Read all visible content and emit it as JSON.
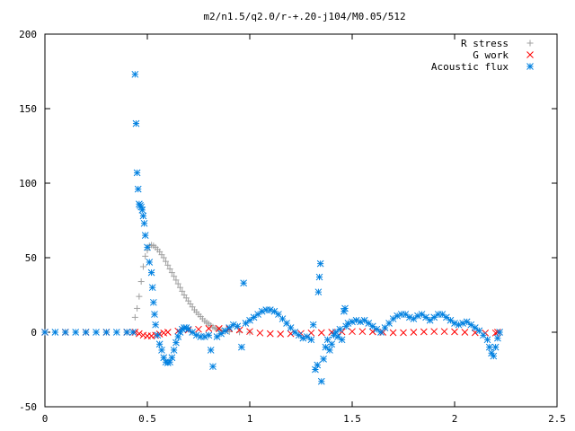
{
  "chart_data": {
    "type": "scatter",
    "title": "m2/n1.5/q2.0/r-+.20-j104/M0.05/512",
    "xlabel": "",
    "ylabel": "",
    "xlim": [
      0,
      2.5
    ],
    "ylim": [
      -50,
      200
    ],
    "x_ticks": [
      0,
      0.5,
      1,
      1.5,
      2,
      2.5
    ],
    "x_tick_labels": [
      "0",
      "0.5",
      "1",
      "1.5",
      "2",
      "2.5"
    ],
    "y_ticks": [
      -50,
      0,
      50,
      100,
      150,
      200
    ],
    "y_tick_labels": [
      "-50",
      "0",
      "50",
      "100",
      "150",
      "200"
    ],
    "grid": false,
    "legend_position": "top-right",
    "series": [
      {
        "name": "R stress",
        "marker": "plus",
        "color": "#a0a0a0",
        "points": [
          [
            0.0,
            0
          ],
          [
            0.1,
            0
          ],
          [
            0.2,
            0
          ],
          [
            0.3,
            0
          ],
          [
            0.4,
            0
          ],
          [
            0.44,
            10
          ],
          [
            0.45,
            16
          ],
          [
            0.46,
            24
          ],
          [
            0.47,
            34
          ],
          [
            0.48,
            44
          ],
          [
            0.49,
            51
          ],
          [
            0.5,
            55
          ],
          [
            0.51,
            58
          ],
          [
            0.52,
            58.5
          ],
          [
            0.53,
            58
          ],
          [
            0.54,
            57
          ],
          [
            0.55,
            55.5
          ],
          [
            0.56,
            54
          ],
          [
            0.57,
            52
          ],
          [
            0.58,
            50
          ],
          [
            0.59,
            47.5
          ],
          [
            0.6,
            45
          ],
          [
            0.61,
            42.5
          ],
          [
            0.62,
            40
          ],
          [
            0.63,
            37.5
          ],
          [
            0.64,
            35
          ],
          [
            0.65,
            32.5
          ],
          [
            0.66,
            30
          ],
          [
            0.67,
            27.5
          ],
          [
            0.68,
            25
          ],
          [
            0.69,
            23
          ],
          [
            0.7,
            21
          ],
          [
            0.71,
            19
          ],
          [
            0.72,
            17
          ],
          [
            0.73,
            15
          ],
          [
            0.74,
            13.5
          ],
          [
            0.75,
            12
          ],
          [
            0.76,
            10.5
          ],
          [
            0.77,
            9
          ],
          [
            0.78,
            7.5
          ],
          [
            0.79,
            6.5
          ],
          [
            0.8,
            5.5
          ],
          [
            0.81,
            4.5
          ],
          [
            0.82,
            3.5
          ],
          [
            0.83,
            2.8
          ],
          [
            0.84,
            2.2
          ],
          [
            0.85,
            1.6
          ],
          [
            0.86,
            1.2
          ],
          [
            0.87,
            0.8
          ],
          [
            0.88,
            0.5
          ],
          [
            0.9,
            0.3
          ],
          [
            0.95,
            0.1
          ],
          [
            1.0,
            0
          ]
        ]
      },
      {
        "name": "G work",
        "marker": "cross",
        "color": "#ff0000",
        "points": [
          [
            0.0,
            0
          ],
          [
            0.1,
            0
          ],
          [
            0.2,
            0
          ],
          [
            0.3,
            0
          ],
          [
            0.4,
            0
          ],
          [
            0.44,
            0
          ],
          [
            0.46,
            -1
          ],
          [
            0.48,
            -2
          ],
          [
            0.5,
            -2.5
          ],
          [
            0.52,
            -2.5
          ],
          [
            0.54,
            -2
          ],
          [
            0.56,
            -1.2
          ],
          [
            0.58,
            -0.5
          ],
          [
            0.6,
            0
          ],
          [
            0.65,
            0.8
          ],
          [
            0.7,
            1.5
          ],
          [
            0.75,
            2
          ],
          [
            0.8,
            2.5
          ],
          [
            0.85,
            2.5
          ],
          [
            0.9,
            2.3
          ],
          [
            0.95,
            1.5
          ],
          [
            1.0,
            0.5
          ],
          [
            1.05,
            -0.5
          ],
          [
            1.1,
            -1
          ],
          [
            1.15,
            -1.2
          ],
          [
            1.2,
            -1
          ],
          [
            1.25,
            -0.8
          ],
          [
            1.3,
            -0.5
          ],
          [
            1.35,
            -0.3
          ],
          [
            1.4,
            0
          ],
          [
            1.45,
            0.3
          ],
          [
            1.5,
            0.5
          ],
          [
            1.55,
            0.5
          ],
          [
            1.6,
            0.3
          ],
          [
            1.65,
            0
          ],
          [
            1.7,
            -0.3
          ],
          [
            1.75,
            -0.3
          ],
          [
            1.8,
            0
          ],
          [
            1.85,
            0.3
          ],
          [
            1.9,
            0.5
          ],
          [
            1.95,
            0.5
          ],
          [
            2.0,
            0.3
          ],
          [
            2.05,
            0
          ],
          [
            2.1,
            -0.3
          ],
          [
            2.15,
            -0.5
          ],
          [
            2.2,
            -0.5
          ],
          [
            2.21,
            0
          ]
        ]
      },
      {
        "name": "Acoustic flux",
        "marker": "star",
        "color": "#0080e0",
        "points": [
          [
            0.0,
            0
          ],
          [
            0.05,
            0
          ],
          [
            0.1,
            0
          ],
          [
            0.15,
            0
          ],
          [
            0.2,
            0
          ],
          [
            0.25,
            0
          ],
          [
            0.3,
            0
          ],
          [
            0.35,
            0
          ],
          [
            0.4,
            0
          ],
          [
            0.43,
            0
          ],
          [
            0.44,
            173
          ],
          [
            0.445,
            140
          ],
          [
            0.45,
            107
          ],
          [
            0.455,
            96
          ],
          [
            0.46,
            86
          ],
          [
            0.465,
            85
          ],
          [
            0.47,
            84
          ],
          [
            0.475,
            82
          ],
          [
            0.48,
            78
          ],
          [
            0.485,
            73
          ],
          [
            0.49,
            65
          ],
          [
            0.5,
            57
          ],
          [
            0.51,
            47
          ],
          [
            0.52,
            40
          ],
          [
            0.525,
            30
          ],
          [
            0.53,
            20
          ],
          [
            0.535,
            12
          ],
          [
            0.54,
            5
          ],
          [
            0.55,
            -2
          ],
          [
            0.56,
            -8
          ],
          [
            0.57,
            -12
          ],
          [
            0.58,
            -17
          ],
          [
            0.59,
            -20
          ],
          [
            0.6,
            -20.5
          ],
          [
            0.61,
            -20
          ],
          [
            0.62,
            -17
          ],
          [
            0.63,
            -12
          ],
          [
            0.64,
            -7
          ],
          [
            0.65,
            -3
          ],
          [
            0.66,
            0
          ],
          [
            0.67,
            2
          ],
          [
            0.68,
            3
          ],
          [
            0.69,
            3
          ],
          [
            0.7,
            2
          ],
          [
            0.72,
            0
          ],
          [
            0.74,
            -2
          ],
          [
            0.76,
            -3
          ],
          [
            0.78,
            -3
          ],
          [
            0.8,
            -2
          ],
          [
            0.81,
            -12
          ],
          [
            0.82,
            -23
          ],
          [
            0.84,
            -3
          ],
          [
            0.86,
            -1
          ],
          [
            0.88,
            1
          ],
          [
            0.9,
            3
          ],
          [
            0.92,
            5
          ],
          [
            0.94,
            4
          ],
          [
            0.96,
            -10
          ],
          [
            0.97,
            33
          ],
          [
            0.98,
            6
          ],
          [
            1.0,
            8
          ],
          [
            1.02,
            10
          ],
          [
            1.04,
            12
          ],
          [
            1.06,
            14
          ],
          [
            1.08,
            15
          ],
          [
            1.1,
            15
          ],
          [
            1.12,
            14
          ],
          [
            1.14,
            12
          ],
          [
            1.16,
            9
          ],
          [
            1.18,
            6
          ],
          [
            1.2,
            3
          ],
          [
            1.22,
            0
          ],
          [
            1.24,
            -2
          ],
          [
            1.26,
            -4
          ],
          [
            1.28,
            -3
          ],
          [
            1.3,
            -5
          ],
          [
            1.31,
            5
          ],
          [
            1.32,
            -25
          ],
          [
            1.33,
            -22
          ],
          [
            1.335,
            27
          ],
          [
            1.34,
            37
          ],
          [
            1.345,
            46
          ],
          [
            1.35,
            -33
          ],
          [
            1.36,
            -18
          ],
          [
            1.37,
            -10
          ],
          [
            1.38,
            -5
          ],
          [
            1.39,
            -12
          ],
          [
            1.4,
            -8
          ],
          [
            1.41,
            -2
          ],
          [
            1.42,
            0
          ],
          [
            1.43,
            -3
          ],
          [
            1.44,
            2
          ],
          [
            1.45,
            -5
          ],
          [
            1.46,
            14
          ],
          [
            1.465,
            16
          ],
          [
            1.47,
            4
          ],
          [
            1.48,
            6
          ],
          [
            1.5,
            7
          ],
          [
            1.52,
            8
          ],
          [
            1.54,
            7
          ],
          [
            1.56,
            8
          ],
          [
            1.58,
            6
          ],
          [
            1.6,
            4
          ],
          [
            1.62,
            2
          ],
          [
            1.64,
            0
          ],
          [
            1.66,
            3
          ],
          [
            1.68,
            6
          ],
          [
            1.7,
            9
          ],
          [
            1.72,
            11
          ],
          [
            1.74,
            12
          ],
          [
            1.76,
            12
          ],
          [
            1.78,
            10
          ],
          [
            1.8,
            9
          ],
          [
            1.82,
            11
          ],
          [
            1.84,
            12
          ],
          [
            1.86,
            10
          ],
          [
            1.88,
            8
          ],
          [
            1.9,
            10
          ],
          [
            1.92,
            12
          ],
          [
            1.94,
            12
          ],
          [
            1.96,
            10
          ],
          [
            1.98,
            8
          ],
          [
            2.0,
            6
          ],
          [
            2.02,
            5
          ],
          [
            2.04,
            6
          ],
          [
            2.06,
            7
          ],
          [
            2.08,
            5
          ],
          [
            2.1,
            3
          ],
          [
            2.12,
            1
          ],
          [
            2.14,
            -2
          ],
          [
            2.16,
            -5
          ],
          [
            2.17,
            -10
          ],
          [
            2.18,
            -14
          ],
          [
            2.19,
            -16
          ],
          [
            2.2,
            -10
          ],
          [
            2.21,
            -4
          ],
          [
            2.22,
            0
          ]
        ]
      }
    ]
  }
}
